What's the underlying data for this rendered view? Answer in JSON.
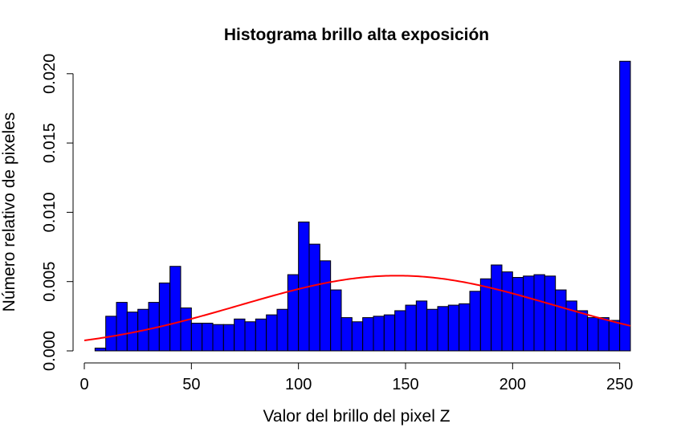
{
  "chart_data": {
    "type": "bar",
    "title": "Histograma brillo alta exposición",
    "xlabel": "Valor del brillo del pixel Z",
    "ylabel": "Número relativo de pixeles",
    "xlim": [
      0,
      255
    ],
    "ylim": [
      0,
      0.0208
    ],
    "x_ticks": [
      0,
      50,
      100,
      150,
      200,
      250
    ],
    "x_tick_labels": [
      "0",
      "50",
      "100",
      "150",
      "200",
      "250"
    ],
    "y_ticks": [
      0.0,
      0.005,
      0.01,
      0.015,
      0.02
    ],
    "y_tick_labels": [
      "0.000",
      "0.005",
      "0.010",
      "0.015",
      "0.020"
    ],
    "grid": false,
    "bin_width": 5,
    "bin_starts": [
      0,
      5,
      10,
      15,
      20,
      25,
      30,
      35,
      40,
      45,
      50,
      55,
      60,
      65,
      70,
      75,
      80,
      85,
      90,
      95,
      100,
      105,
      110,
      115,
      120,
      125,
      130,
      135,
      140,
      145,
      150,
      155,
      160,
      165,
      170,
      175,
      180,
      185,
      190,
      195,
      200,
      205,
      210,
      215,
      220,
      225,
      230,
      235,
      240,
      245,
      250
    ],
    "values": [
      0.0,
      0.0002,
      0.0025,
      0.0035,
      0.0028,
      0.003,
      0.0035,
      0.0049,
      0.0061,
      0.0031,
      0.002,
      0.002,
      0.0019,
      0.0019,
      0.0023,
      0.0021,
      0.0023,
      0.0026,
      0.003,
      0.0055,
      0.0093,
      0.0077,
      0.0065,
      0.0044,
      0.0024,
      0.0021,
      0.0024,
      0.0025,
      0.0026,
      0.0029,
      0.0033,
      0.0036,
      0.003,
      0.0032,
      0.0033,
      0.0034,
      0.0043,
      0.0052,
      0.0062,
      0.0057,
      0.0053,
      0.0054,
      0.0055,
      0.0054,
      0.0044,
      0.0036,
      0.0029,
      0.0024,
      0.0024,
      0.0022,
      0.0209
    ],
    "bar_color": "#0000ff",
    "bar_border_color": "#000000",
    "curve": {
      "type": "normal density",
      "color": "#ff0000",
      "mean": 146,
      "sd": 73.5
    }
  }
}
